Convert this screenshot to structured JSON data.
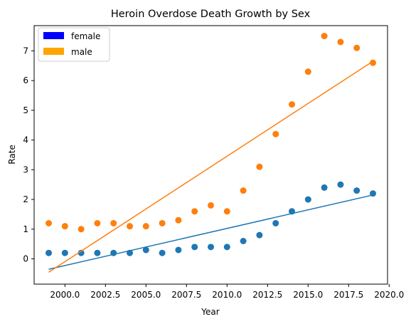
{
  "chart_data": {
    "type": "scatter",
    "title": "Heroin Overdose Death Growth by Sex",
    "xlabel": "Year",
    "ylabel": "Rate",
    "xlim": [
      1998.1,
      2019.9
    ],
    "ylim": [
      -0.85,
      7.85
    ],
    "x_ticks": [
      2000,
      2002.5,
      2005,
      2007.5,
      2010,
      2012.5,
      2015,
      2017.5,
      2020
    ],
    "x_tick_labels": [
      "2000.0",
      "2002.5",
      "2005.0",
      "2007.5",
      "2010.0",
      "2012.5",
      "2015.0",
      "2017.5",
      "2020.0"
    ],
    "y_ticks": [
      0,
      1,
      2,
      3,
      4,
      5,
      6,
      7
    ],
    "y_tick_labels": [
      "0",
      "1",
      "2",
      "3",
      "4",
      "5",
      "6",
      "7"
    ],
    "grid": false,
    "legend": {
      "placement": "top-left",
      "entries": [
        {
          "label": "female",
          "color": "#0000ff"
        },
        {
          "label": "male",
          "color": "#ffa500"
        }
      ]
    },
    "series": [
      {
        "color": "#1f77b4",
        "x": [
          1999,
          2000,
          2001,
          2002,
          2003,
          2004,
          2005,
          2006,
          2007,
          2008,
          2009,
          2010,
          2011,
          2012,
          2013,
          2014,
          2015,
          2016,
          2017,
          2018,
          2019
        ],
        "values": [
          0.2,
          0.2,
          0.2,
          0.2,
          0.2,
          0.2,
          0.3,
          0.2,
          0.3,
          0.4,
          0.4,
          0.4,
          0.6,
          0.8,
          1.2,
          1.6,
          2.0,
          2.4,
          2.5,
          2.3,
          2.2
        ],
        "trend_line": {
          "x": [
            1999,
            2019
          ],
          "y": [
            -0.35,
            2.15
          ]
        }
      },
      {
        "color": "#ff7f0e",
        "x": [
          1999,
          2000,
          2001,
          2002,
          2003,
          2004,
          2005,
          2006,
          2007,
          2008,
          2009,
          2010,
          2011,
          2012,
          2013,
          2014,
          2015,
          2016,
          2017,
          2018,
          2019
        ],
        "values": [
          1.2,
          1.1,
          1.0,
          1.2,
          1.2,
          1.1,
          1.1,
          1.2,
          1.3,
          1.6,
          1.8,
          1.6,
          2.3,
          3.1,
          4.2,
          5.2,
          6.3,
          7.5,
          7.3,
          7.1,
          6.6
        ],
        "trend_line": {
          "x": [
            1999,
            2019
          ],
          "y": [
            -0.45,
            6.65
          ]
        }
      }
    ]
  }
}
